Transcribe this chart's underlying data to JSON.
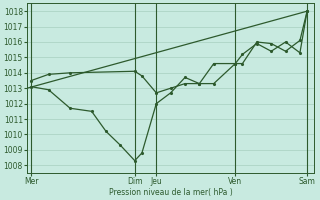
{
  "title": "Pression niveau de la mer( hPa )",
  "bg_color": "#c8eae0",
  "grid_color": "#a8cfc0",
  "line_color": "#2d5a2d",
  "ylim": [
    1007.5,
    1018.5
  ],
  "yticks": [
    1008,
    1009,
    1010,
    1011,
    1012,
    1013,
    1014,
    1015,
    1016,
    1017,
    1018
  ],
  "xlim": [
    0,
    20
  ],
  "xtick_labels": [
    "Mer",
    "Dim",
    "Jeu",
    "Ven",
    "Sam"
  ],
  "xtick_positions": [
    0.3,
    7.5,
    9.0,
    14.5,
    19.5
  ],
  "vline_positions": [
    0.3,
    7.5,
    9.0,
    14.5,
    19.5
  ],
  "line1_x": [
    0,
    19.5
  ],
  "line1_y": [
    1013.0,
    1018.0
  ],
  "line2_x": [
    0.3,
    1.5,
    3.0,
    4.5,
    5.5,
    6.5,
    7.5,
    8.0,
    9.0,
    10.0,
    11.0,
    12.0,
    13.0,
    14.5,
    15.0,
    16.0,
    17.0,
    18.0,
    19.0,
    19.5
  ],
  "line2_y": [
    1013.1,
    1012.9,
    1011.7,
    1011.5,
    1010.2,
    1009.3,
    1008.3,
    1008.8,
    1012.0,
    1012.7,
    1013.7,
    1013.3,
    1013.3,
    1014.6,
    1014.6,
    1016.0,
    1015.9,
    1015.4,
    1016.1,
    1018.0
  ],
  "line3_x": [
    0.3,
    1.5,
    3.0,
    7.5,
    8.0,
    9.0,
    10.0,
    11.0,
    12.0,
    13.0,
    14.5,
    15.0,
    16.0,
    17.0,
    18.0,
    19.0,
    19.5
  ],
  "line3_y": [
    1013.5,
    1013.9,
    1014.0,
    1014.1,
    1013.8,
    1012.7,
    1013.0,
    1013.3,
    1013.3,
    1014.6,
    1014.6,
    1015.2,
    1015.9,
    1015.4,
    1016.0,
    1015.3,
    1018.0
  ]
}
